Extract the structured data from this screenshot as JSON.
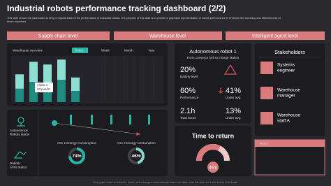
{
  "header": {
    "title": "Industrial robots performance tracking dashboard (2/2)",
    "description": [
      "This slide shows the dashboard to keep a regular track of the performance of industrial robots. The purpose of this slide is to provide a graphical representation of robots performance to enhance the accuracy and effectiveness of",
      "these machines."
    ]
  },
  "sections": [
    "Supply chain level",
    "Warehouse level",
    "Intelligent agent level"
  ],
  "warehouse_chart": {
    "type": "bar",
    "tabs": [
      "Warehouse overview",
      "Today",
      "Week",
      "Month",
      "Year"
    ],
    "active_tab": 1,
    "ylim": [
      0,
      100
    ],
    "series": [
      {
        "color": "#1e8a80",
        "values": [
          30,
          45,
          40,
          50,
          25
        ]
      },
      {
        "color": "#8fded3",
        "values": [
          32,
          45,
          44,
          45,
          30
        ]
      }
    ],
    "annotation": [
      "Alpha 1",
      "20 pos/hr"
    ]
  },
  "status": {
    "robots_label": [
      "Autonomous",
      "Robots status"
    ],
    "arms_label": [
      "Robotic",
      "Arms status"
    ]
  },
  "arms": [
    {
      "title": "Arm 1 Energy Consumption",
      "value": 74,
      "label": "74%",
      "color": "#2ab5a5"
    },
    {
      "title": "Arm 2 Energy consumption",
      "value": 46,
      "label": "46%",
      "color": "#7fd6cb"
    }
  ],
  "robot": {
    "title": "Autonomous robot 1",
    "subtitle": "From conveyor belt to charge station",
    "kpis": [
      {
        "value": "20%",
        "label": "Battery level"
      },
      {
        "value": "60%",
        "label": "Performance"
      },
      {
        "value": "41%",
        "label": "Under avg."
      },
      {
        "value": "2.1h",
        "label": "Total hours"
      },
      {
        "value": "13%",
        "label": "Under avg."
      }
    ]
  },
  "time_to_return": {
    "title": "Time to return",
    "label": "46m",
    "fill_percent": 65
  },
  "stakeholders": {
    "title": "Stakeholders",
    "people": [
      [
        "Systems",
        "engineer"
      ],
      [
        "Warehouse",
        "manager"
      ],
      [
        "Warehouse",
        "staff A"
      ]
    ]
  },
  "notes": {
    "title": "Notes"
  },
  "footer": "This graph/chart is linked to excel, and changes automatically based on data. Just left click on it and select 'Edit Data'."
}
